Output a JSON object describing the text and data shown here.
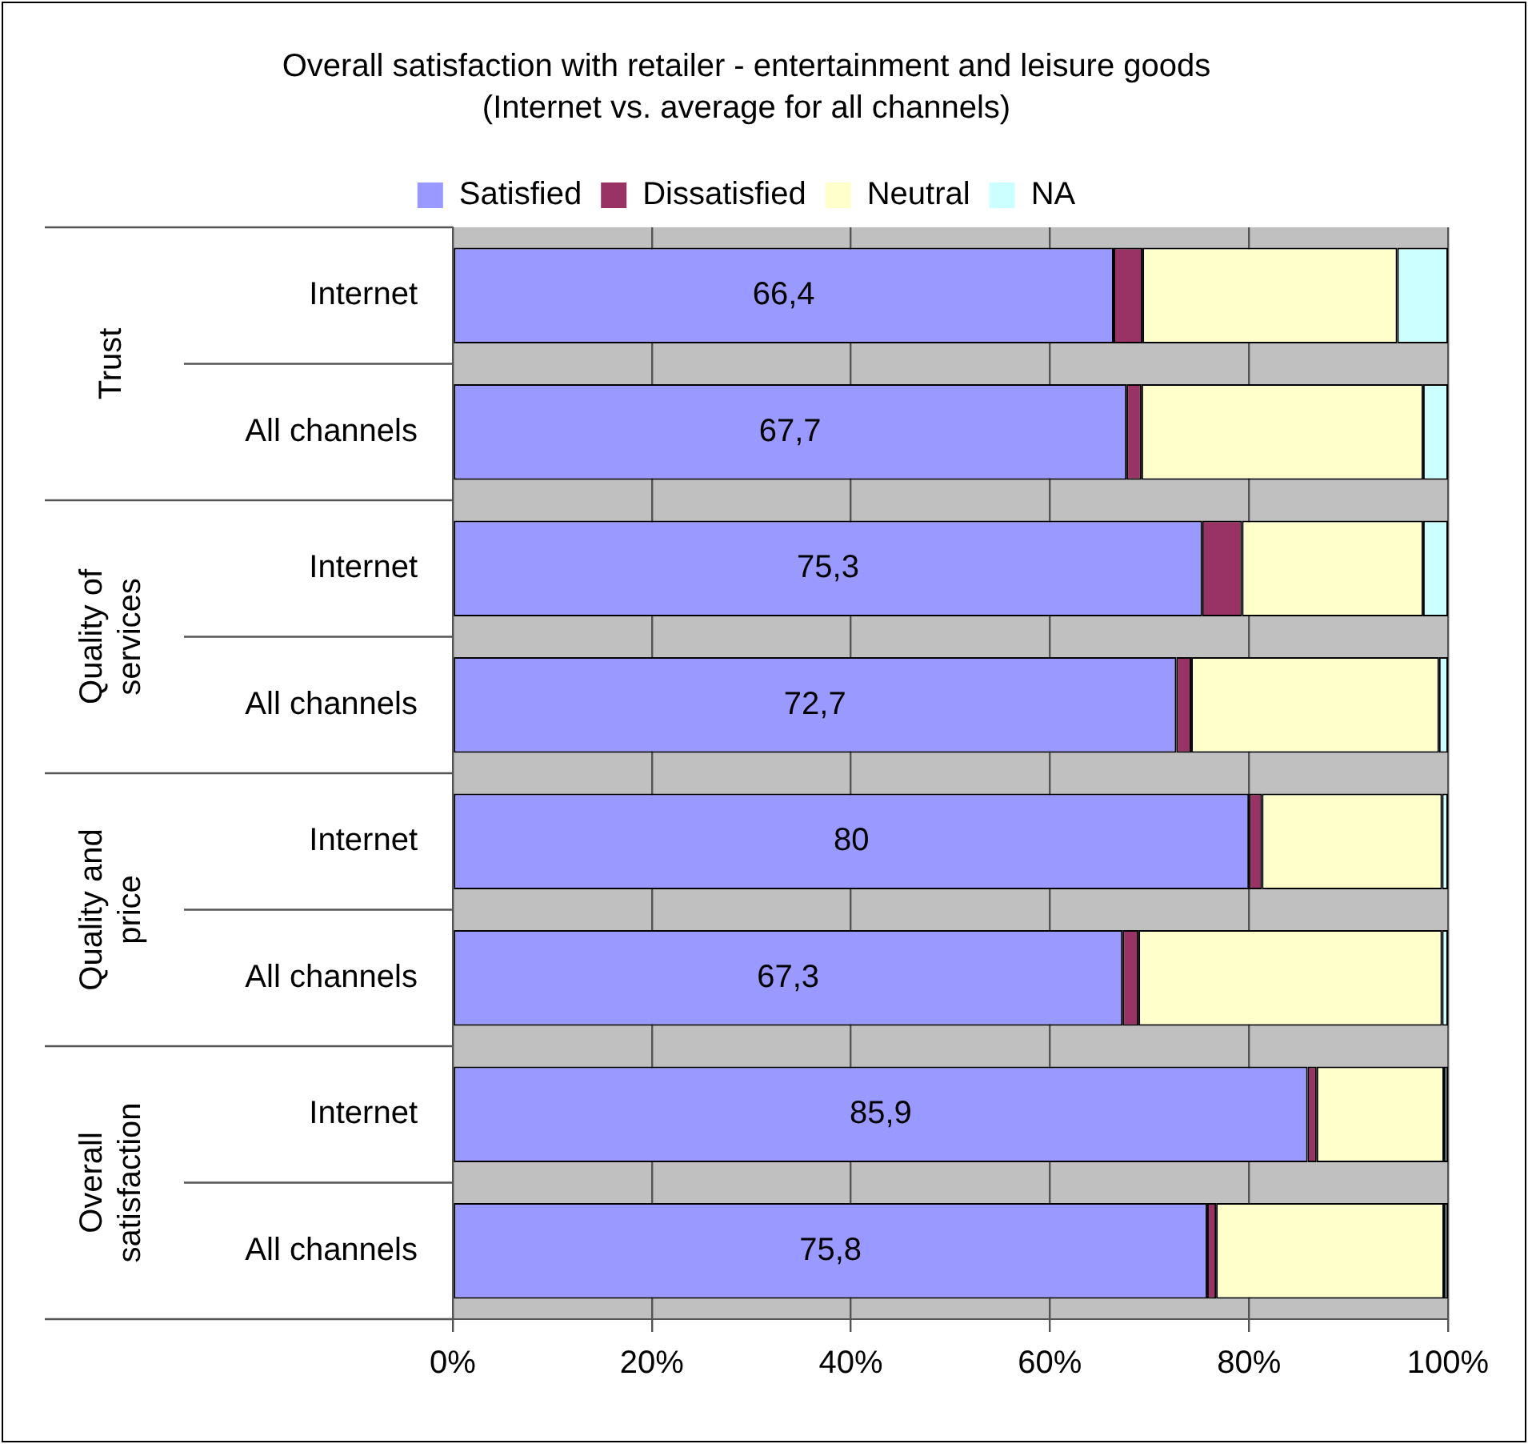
{
  "chart_data": {
    "type": "bar",
    "orientation": "horizontal",
    "stacked": true,
    "title": "Overall satisfaction with retailer - entertainment and leisure goods",
    "subtitle": "(Internet vs. average for all channels)",
    "categories": [
      "Internet",
      "All channels",
      "Internet",
      "All channels",
      "Internet",
      "All channels",
      "Internet",
      "All channels"
    ],
    "annotations": [
      "Trust",
      "Quality of services",
      "Quality and price",
      "Overall satisfaction"
    ],
    "series": [
      {
        "name": "Satisfied",
        "color": "#9999ff",
        "values": [
          66.4,
          67.7,
          75.3,
          72.7,
          80,
          67.3,
          85.9,
          75.8
        ],
        "value_labels": [
          "66,4",
          "67,7",
          "75,3",
          "72,7",
          "80",
          "67,3",
          "85,9",
          "75,8"
        ]
      },
      {
        "name": "Dissatisfied",
        "color": "#993366",
        "values": [
          2.9,
          1.5,
          4.0,
          1.5,
          1.3,
          1.6,
          0.9,
          0.9
        ]
      },
      {
        "name": "Neutral",
        "color": "#ffffcc",
        "values": [
          25.6,
          28.3,
          18.2,
          24.9,
          18.1,
          30.5,
          12.8,
          22.9
        ]
      },
      {
        "name": "NA",
        "color": "#ccffff",
        "values": [
          5.1,
          2.5,
          2.5,
          0.9,
          0.6,
          0.6,
          0.4,
          0.4
        ]
      }
    ],
    "xlim": [
      0,
      100
    ],
    "xticks": [
      {
        "value": 0,
        "label": "0%"
      },
      {
        "value": 20,
        "label": "20%"
      },
      {
        "value": 40,
        "label": "40%"
      },
      {
        "value": 60,
        "label": "60%"
      },
      {
        "value": 80,
        "label": "80%"
      },
      {
        "value": 100,
        "label": "100%"
      }
    ],
    "grid": "x",
    "legend": "top"
  }
}
